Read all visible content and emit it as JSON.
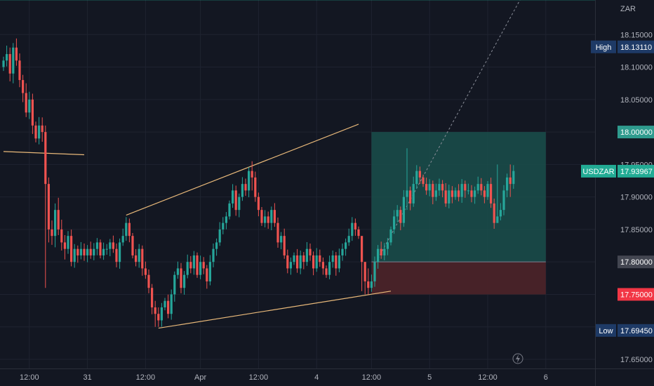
{
  "chart_data": {
    "type": "candlestick",
    "symbol": "USDZAR",
    "currency": "ZAR",
    "y_axis": {
      "range": [
        17.64,
        18.18
      ],
      "ticks": [
        "18.15000",
        "18.10000",
        "18.05000",
        "18.00000",
        "17.95000",
        "17.90000",
        "17.85000",
        "17.80000",
        "17.75000",
        "17.70000",
        "17.65000"
      ]
    },
    "x_axis": {
      "ticks": [
        {
          "label": "12:00",
          "i": 8
        },
        {
          "label": "31",
          "i": 26
        },
        {
          "label": "12:00",
          "i": 44
        },
        {
          "label": "Apr",
          "i": 61
        },
        {
          "label": "12:00",
          "i": 79
        },
        {
          "label": "4",
          "i": 97
        },
        {
          "label": "12:00",
          "i": 114
        },
        {
          "label": "5",
          "i": 132
        },
        {
          "label": "12:00",
          "i": 150
        },
        {
          "label": "6",
          "i": 168
        }
      ]
    },
    "closes": [
      18.11,
      18.12,
      18.09,
      18.13,
      18.11,
      18.08,
      18.06,
      18.03,
      18.05,
      18.01,
      17.99,
      18.01,
      18.0,
      17.92,
      17.85,
      17.84,
      17.88,
      17.85,
      17.83,
      17.82,
      17.84,
      17.8,
      17.82,
      17.81,
      17.82,
      17.81,
      17.82,
      17.81,
      17.82,
      17.83,
      17.81,
      17.82,
      17.82,
      17.83,
      17.82,
      17.8,
      17.83,
      17.84,
      17.86,
      17.84,
      17.81,
      17.8,
      17.82,
      17.79,
      17.78,
      17.76,
      17.73,
      17.72,
      17.71,
      17.73,
      17.74,
      17.72,
      17.75,
      17.78,
      17.79,
      17.76,
      17.78,
      17.8,
      17.79,
      17.81,
      17.78,
      17.8,
      17.79,
      17.77,
      17.8,
      17.82,
      17.83,
      17.85,
      17.86,
      17.87,
      17.89,
      17.91,
      17.88,
      17.9,
      17.92,
      17.91,
      17.94,
      17.93,
      17.9,
      17.88,
      17.86,
      17.87,
      17.86,
      17.88,
      17.86,
      17.83,
      17.84,
      17.81,
      17.79,
      17.8,
      17.81,
      17.79,
      17.81,
      17.8,
      17.82,
      17.81,
      17.79,
      17.81,
      17.8,
      17.79,
      17.78,
      17.8,
      17.81,
      17.79,
      17.81,
      17.82,
      17.83,
      17.84,
      17.86,
      17.85,
      17.84,
      17.8,
      17.77,
      17.76,
      17.77,
      17.8,
      17.82,
      17.81,
      17.82,
      17.83,
      17.85,
      17.87,
      17.88,
      17.86,
      17.9,
      17.91,
      17.89,
      17.92,
      17.94,
      17.93,
      17.92,
      17.91,
      17.92,
      17.9,
      17.91,
      17.92,
      17.91,
      17.89,
      17.91,
      17.9,
      17.91,
      17.9,
      17.92,
      17.91,
      17.91,
      17.9,
      17.91,
      17.92,
      17.91,
      17.9,
      17.92,
      17.89,
      17.86,
      17.87,
      17.88,
      17.91,
      17.93,
      17.92,
      17.94
    ],
    "ranges": [
      {
        "i0": 0,
        "i1": 11,
        "delta": 0.02
      },
      {
        "i0": 12,
        "i1": 20,
        "delta": 0.025
      },
      {
        "i0": 21,
        "i1": 160,
        "delta": 0.015
      }
    ],
    "special": [
      {
        "i": 13,
        "high": 18.01,
        "low": 17.76
      },
      {
        "i": 14,
        "high": 17.93,
        "low": 17.83
      },
      {
        "i": 47,
        "high": 17.74,
        "low": 17.7
      },
      {
        "i": 48,
        "high": 17.73,
        "low": 17.7
      },
      {
        "i": 77,
        "high": 17.955,
        "low": 17.91
      },
      {
        "i": 111,
        "high": 17.82,
        "low": 17.755
      },
      {
        "i": 112,
        "high": 17.8,
        "low": 17.75
      },
      {
        "i": 113,
        "high": 17.79,
        "low": 17.75
      },
      {
        "i": 125,
        "high": 17.975,
        "low": 17.88
      },
      {
        "i": 153,
        "high": 17.95,
        "low": 17.86
      },
      {
        "i": 157,
        "high": 17.95,
        "low": 17.9
      }
    ],
    "last_bar": 160,
    "lines": [
      {
        "from": {
          "i": 0,
          "v": 17.97
        },
        "to": {
          "i": 25,
          "v": 17.965
        },
        "color": "#e9b97a"
      },
      {
        "from": {
          "i": 38,
          "v": 17.872
        },
        "to": {
          "i": 110,
          "v": 18.012
        },
        "color": "#e9b97a"
      },
      {
        "from": {
          "i": 48,
          "v": 17.698
        },
        "to": {
          "i": 120,
          "v": 17.755
        },
        "color": "#e9b97a"
      }
    ],
    "position": {
      "i0": 114,
      "i1": 168,
      "entry": 17.8,
      "target": 18.0,
      "stop": 17.75,
      "entry_from_i": 116,
      "entry_from_v": 17.805,
      "profit_color": "#1a4f4b",
      "loss_color": "#4e2429"
    },
    "price_labels": [
      {
        "label": "High",
        "value": "18.13110",
        "y": 18.1311,
        "bg": "#1e3a66",
        "fg": "#ffffff"
      },
      {
        "label": "",
        "value": "18.00000",
        "y": 18.0,
        "bg": "#2f9b8e",
        "fg": "#ffffff"
      },
      {
        "label": "USDZAR",
        "value": "17.93967",
        "y": 17.93967,
        "bg": "#22ab94",
        "fg": "#ffffff"
      },
      {
        "label": "",
        "value": "17.80000",
        "y": 17.8,
        "bg": "#434651",
        "fg": "#ffffff"
      },
      {
        "label": "",
        "value": "17.75000",
        "y": 17.75,
        "bg": "#f23645",
        "fg": "#ffffff"
      },
      {
        "label": "Low",
        "value": "17.69450",
        "y": 17.6945,
        "bg": "#1e3a66",
        "fg": "#ffffff"
      }
    ],
    "colors": {
      "up": "#26a69a",
      "down": "#ef5350",
      "grid": "#1f2330",
      "text": "#b2b5be"
    }
  }
}
